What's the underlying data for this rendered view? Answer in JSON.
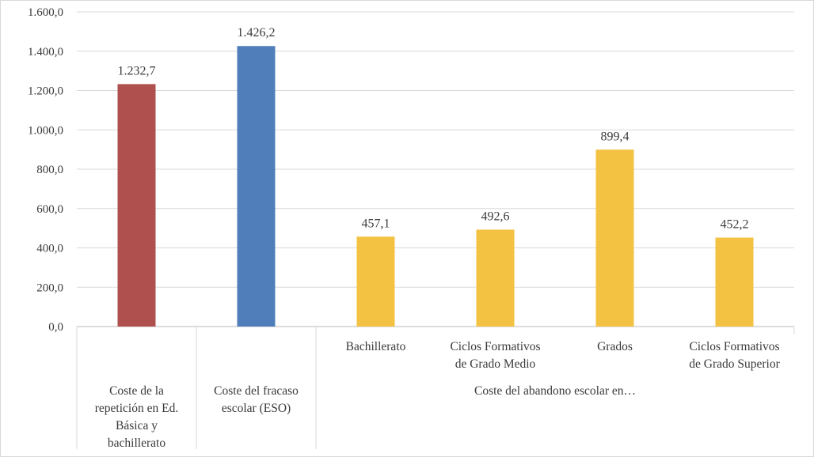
{
  "chart_data": {
    "type": "bar",
    "title": "",
    "xlabel": "",
    "ylabel": "",
    "ylim": [
      0,
      1600
    ],
    "yticks": [
      0,
      200,
      400,
      600,
      800,
      1000,
      1200,
      1400,
      1600
    ],
    "ytick_labels": [
      "0,0",
      "200,0",
      "400,0",
      "600,0",
      "800,0",
      "1.000,0",
      "1.200,0",
      "1.400,0",
      "1.600,0"
    ],
    "grid": true,
    "legend": "none",
    "categories": [
      "Coste de la repetición en Ed. Básica y bachillerato",
      "Coste del fracaso escolar (ESO)",
      "Bachillerato",
      "Ciclos Formativos de Grado Medio",
      "Grados",
      "Ciclos Formativos de Grado Superior"
    ],
    "category_lines": [
      [
        "Coste de la",
        "repetición en Ed.",
        "Básica y",
        "bachillerato"
      ],
      [
        "Coste del fracaso",
        "escolar (ESO)"
      ],
      [
        "Bachillerato"
      ],
      [
        "Ciclos Formativos",
        "de Grado Medio"
      ],
      [
        "Grados"
      ],
      [
        "Ciclos Formativos",
        "de Grado Superior"
      ]
    ],
    "group_label": "Coste del abandono escolar en…",
    "values": [
      1232.7,
      1426.2,
      457.1,
      492.6,
      899.4,
      452.2
    ],
    "value_labels": [
      "1.232,7",
      "1.426,2",
      "457,1",
      "492,6",
      "899,4",
      "452,2"
    ],
    "colors": [
      "#B0504E",
      "#4F7EBB",
      "#F4C242",
      "#F4C242",
      "#F4C242",
      "#F4C242"
    ]
  }
}
